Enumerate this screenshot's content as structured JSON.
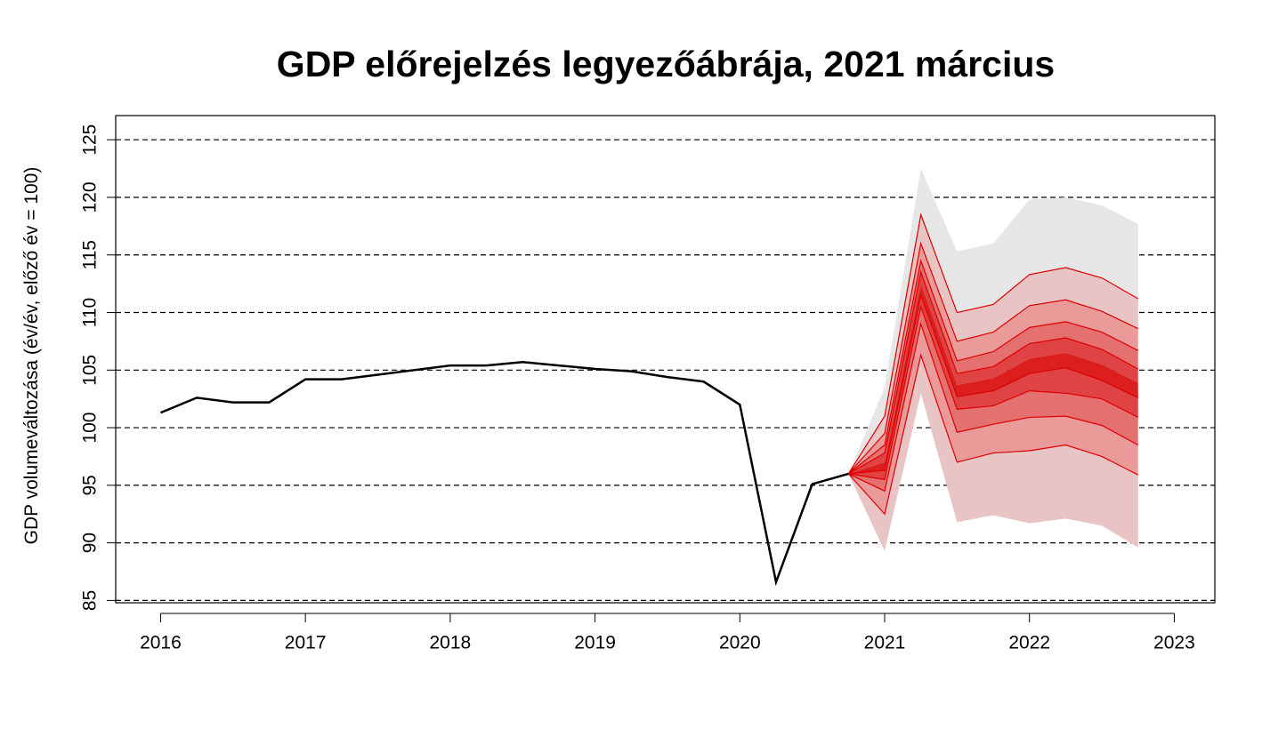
{
  "chart_data": {
    "type": "fan",
    "title": "GDP előrejelzés legyezőábrája, 2021 március",
    "ylabel": "GDP volumeváltozása (év/év, előző év = 100)",
    "xlim": [
      2015.69,
      2023.28
    ],
    "xticks": [
      2016,
      2017,
      2018,
      2019,
      2020,
      2021,
      2022,
      2023
    ],
    "ylim": [
      84.8,
      127.1
    ],
    "yticks": [
      85,
      90,
      95,
      100,
      105,
      110,
      115,
      120,
      125
    ],
    "grid": true,
    "history": {
      "color": "#000000",
      "x": [
        2016.0,
        2016.25,
        2016.5,
        2016.75,
        2017.0,
        2017.25,
        2017.5,
        2017.75,
        2018.0,
        2018.25,
        2018.5,
        2018.75,
        2019.0,
        2019.25,
        2019.5,
        2019.75,
        2020.0,
        2020.25,
        2020.5,
        2020.75
      ],
      "values": [
        101.3,
        102.6,
        102.2,
        102.2,
        104.2,
        104.2,
        104.6,
        105.0,
        105.4,
        105.4,
        105.7,
        105.4,
        105.1,
        104.9,
        104.4,
        104.0,
        102.0,
        86.6,
        95.1,
        96.0
      ]
    },
    "fan": {
      "x": [
        2020.75,
        2021.0,
        2021.25,
        2021.5,
        2021.75,
        2022.0,
        2022.25,
        2022.5,
        2022.75
      ],
      "band_colors": [
        "#e6e6e6",
        "#e8c4c4",
        "#eb9a9a",
        "#e57070",
        "#df4343",
        "#db1e1e",
        "#df4343",
        "#e57070",
        "#eb9a9a",
        "#e8c4c4",
        "#e6e6e6"
      ],
      "lines": [
        {
          "values": [
            96,
            103.5,
            122.5,
            115.3,
            116,
            119.8,
            120,
            119.3,
            117.7
          ]
        },
        {
          "values": [
            96,
            101,
            118.5,
            110,
            110.7,
            113.3,
            113.9,
            113,
            111.2
          ],
          "stroke": "#dd0000"
        },
        {
          "values": [
            96,
            99.5,
            116,
            107.5,
            108.3,
            110.6,
            111.1,
            110.1,
            108.6
          ],
          "stroke": "#dd0000"
        },
        {
          "values": [
            96,
            98.5,
            114.5,
            105.8,
            106.6,
            108.7,
            109.2,
            108.3,
            106.7
          ],
          "stroke": "#dd0000"
        },
        {
          "values": [
            96,
            97.8,
            113.5,
            104.7,
            105.3,
            107.3,
            107.8,
            106.8,
            105.1
          ],
          "stroke": "#dd0000"
        },
        {
          "values": [
            96,
            97,
            112.5,
            103.7,
            104.3,
            106,
            106.5,
            105.5,
            103.9
          ]
        },
        {
          "values": [
            96,
            96.3,
            111.5,
            102.7,
            103.2,
            104.7,
            105.2,
            104.1,
            102.6
          ],
          "stroke": "#dd0000"
        },
        {
          "values": [
            96,
            95.5,
            110.5,
            101.6,
            101.9,
            103.2,
            103.0,
            102.5,
            100.9
          ],
          "stroke": "#dd0000"
        },
        {
          "values": [
            96,
            94.5,
            109,
            99.6,
            100.3,
            100.9,
            101.0,
            100.2,
            98.5
          ],
          "stroke": "#dd0000"
        },
        {
          "values": [
            96,
            92.5,
            106.3,
            97.0,
            97.8,
            98.0,
            98.5,
            97.5,
            95.9
          ],
          "stroke": "#dd0000"
        },
        {
          "values": [
            96,
            89.3,
            103.0,
            91.8,
            92.4,
            91.7,
            92.1,
            91.5,
            89.6
          ]
        }
      ]
    }
  }
}
